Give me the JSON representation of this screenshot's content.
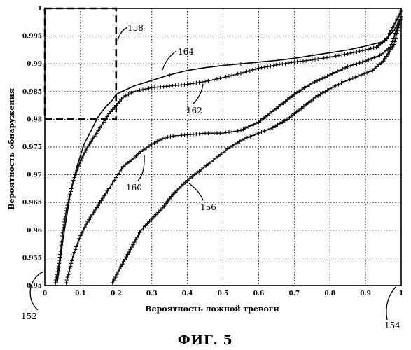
{
  "figure": {
    "caption": "ФИГ. 5",
    "reference_numerals": {
      "r152": "152",
      "r154": "154",
      "r156": "156",
      "r158": "158",
      "r160": "160",
      "r162": "162",
      "r164": "164"
    }
  },
  "chart_data": {
    "type": "line",
    "title": "",
    "xlabel": "Вероятность ложной тревоги",
    "ylabel": "Вероятность обнаружения",
    "xlim": [
      0,
      1
    ],
    "ylim": [
      0.95,
      1
    ],
    "xticks": [
      0,
      0.1,
      0.2,
      0.3,
      0.4,
      0.5,
      0.6,
      0.7,
      0.8,
      0.9,
      1
    ],
    "xtick_labels": [
      "0",
      "0.1",
      "0.2",
      "0.3",
      "0.4",
      "0.5",
      "0.6",
      "0.7",
      "0.8",
      "0.9",
      "1"
    ],
    "yticks": [
      0.95,
      0.955,
      0.96,
      0.965,
      0.97,
      0.975,
      0.98,
      0.985,
      0.99,
      0.995,
      1
    ],
    "ytick_labels": [
      "0.95",
      "0.955",
      "0.96",
      "0.965",
      "0.97",
      "0.975",
      "0.98",
      "0.985",
      "0.99",
      "0.995",
      "1"
    ],
    "grid": true,
    "series": [
      {
        "ref": "164",
        "marker": "none",
        "x": [
          0.035,
          0.05,
          0.07,
          0.09,
          0.11,
          0.13,
          0.15,
          0.17,
          0.19,
          0.2,
          0.25,
          0.3,
          0.35,
          0.4,
          0.45,
          0.5,
          0.55,
          0.6,
          0.65,
          0.7,
          0.75,
          0.8,
          0.85,
          0.9,
          0.95,
          0.98,
          1.0
        ],
        "y": [
          0.9505,
          0.958,
          0.966,
          0.9715,
          0.9755,
          0.978,
          0.9805,
          0.9822,
          0.9835,
          0.9845,
          0.986,
          0.987,
          0.988,
          0.9888,
          0.9893,
          0.9897,
          0.99,
          0.9903,
          0.9906,
          0.991,
          0.9915,
          0.992,
          0.9925,
          0.9932,
          0.994,
          0.996,
          0.9985
        ]
      },
      {
        "ref": "162",
        "marker": "+",
        "x": [
          0.03,
          0.04,
          0.05,
          0.06,
          0.08,
          0.1,
          0.12,
          0.14,
          0.16,
          0.18,
          0.2,
          0.22,
          0.25,
          0.3,
          0.35,
          0.4,
          0.45,
          0.5,
          0.55,
          0.6,
          0.65,
          0.7,
          0.75,
          0.8,
          0.85,
          0.9,
          0.93,
          0.96,
          0.98,
          1.0
        ],
        "y": [
          0.9505,
          0.954,
          0.9595,
          0.9635,
          0.969,
          0.9725,
          0.975,
          0.977,
          0.979,
          0.981,
          0.9825,
          0.984,
          0.985,
          0.9857,
          0.986,
          0.9863,
          0.9868,
          0.9875,
          0.9883,
          0.9892,
          0.9898,
          0.9903,
          0.9907,
          0.9912,
          0.9918,
          0.9925,
          0.993,
          0.9945,
          0.997,
          0.9995
        ]
      },
      {
        "ref": "160",
        "marker": "+",
        "x": [
          0.06,
          0.07,
          0.08,
          0.1,
          0.12,
          0.15,
          0.18,
          0.2,
          0.22,
          0.25,
          0.27,
          0.3,
          0.33,
          0.36,
          0.4,
          0.45,
          0.5,
          0.55,
          0.6,
          0.65,
          0.7,
          0.75,
          0.8,
          0.85,
          0.9,
          0.94,
          0.97,
          1.0
        ],
        "y": [
          0.9505,
          0.953,
          0.9555,
          0.959,
          0.9615,
          0.9645,
          0.9675,
          0.9695,
          0.9715,
          0.973,
          0.9742,
          0.9755,
          0.9765,
          0.977,
          0.9772,
          0.9775,
          0.9775,
          0.978,
          0.9795,
          0.982,
          0.9845,
          0.9865,
          0.988,
          0.9895,
          0.9905,
          0.9915,
          0.993,
          0.9985
        ]
      },
      {
        "ref": "156",
        "marker": "+",
        "x": [
          0.19,
          0.21,
          0.24,
          0.27,
          0.3,
          0.33,
          0.36,
          0.4,
          0.44,
          0.48,
          0.52,
          0.56,
          0.6,
          0.64,
          0.68,
          0.72,
          0.76,
          0.8,
          0.84,
          0.88,
          0.92,
          0.95,
          0.98,
          1.0
        ],
        "y": [
          0.9505,
          0.953,
          0.9565,
          0.96,
          0.962,
          0.964,
          0.9665,
          0.969,
          0.971,
          0.973,
          0.975,
          0.9765,
          0.9775,
          0.9785,
          0.98,
          0.982,
          0.984,
          0.9855,
          0.9868,
          0.9878,
          0.9888,
          0.9905,
          0.9935,
          0.9985
        ]
      }
    ],
    "annotations": [
      {
        "ref": "158",
        "type": "dashed-box",
        "x": [
          0,
          0.2
        ],
        "y": [
          0.98,
          1.0
        ]
      }
    ]
  }
}
